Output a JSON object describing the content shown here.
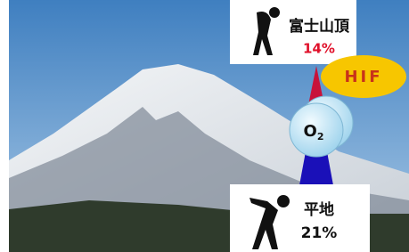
{
  "summit": {
    "label": "富士山頂",
    "oxygen": "14%"
  },
  "badge": "HIF",
  "molecule": {
    "symbol": "O",
    "subscript": "2"
  },
  "ground": {
    "label": "平地",
    "oxygen": "21%"
  }
}
